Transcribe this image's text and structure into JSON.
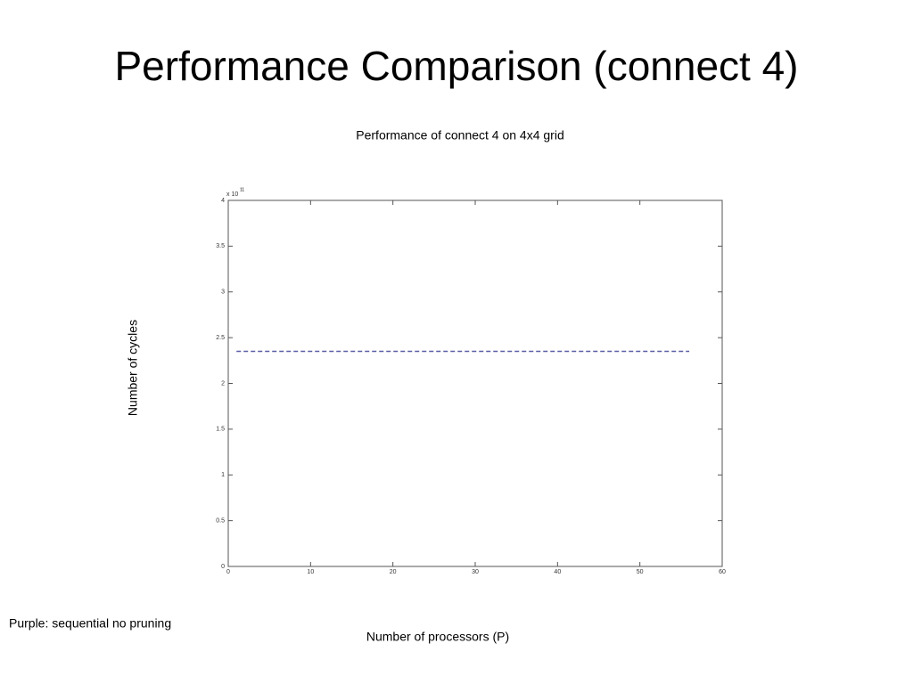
{
  "slide_title": "Performance Comparison (connect 4)",
  "note": "Purple: sequential no pruning",
  "chart_data": {
    "type": "line",
    "title": "Performance of connect 4 on 4x4 grid",
    "x_label": "Number of processors (P)",
    "y_label": "Number of cycles",
    "y_multiplier": {
      "base": "x 10",
      "exponent": "11"
    },
    "x": [
      1,
      56
    ],
    "series": [
      {
        "name": "sequential no pruning",
        "color": "#5b5ea6",
        "values": [
          2.35,
          2.35
        ]
      }
    ],
    "xlim": [
      0,
      60
    ],
    "xticks": [
      0,
      10,
      20,
      30,
      40,
      50,
      60
    ],
    "ylim": [
      0,
      4
    ],
    "yticks": [
      0,
      0.5,
      1,
      1.5,
      2,
      2.5,
      3,
      3.5,
      4
    ],
    "dashed": true
  }
}
